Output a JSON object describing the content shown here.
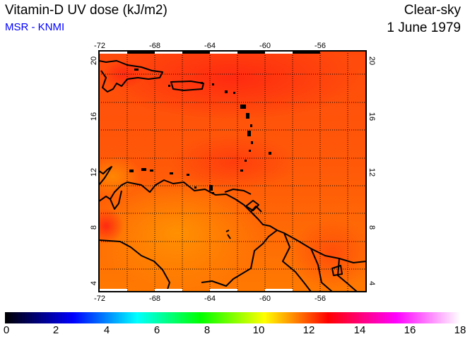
{
  "header": {
    "title": "Vitamin-D UV dose (kJ/m2)",
    "source": "MSR - KNMI",
    "condition": "Clear-sky",
    "date": "1 June 1979"
  },
  "map": {
    "lon_ticks": [
      "-72",
      "-68",
      "-64",
      "-60",
      "-56"
    ],
    "lat_ticks": [
      "20",
      "16",
      "12",
      "8",
      "4"
    ],
    "lon_range": [
      -72.1,
      -52.7
    ],
    "lat_range": [
      3.4,
      20.7
    ],
    "field_range_kJ_m2": [
      11.5,
      13.5
    ]
  },
  "colorbar": {
    "labels": [
      "0",
      "2",
      "4",
      "6",
      "8",
      "10",
      "12",
      "14",
      "16",
      "18"
    ],
    "min": 0,
    "max": 18,
    "colors": [
      "#000000",
      "#0000ff",
      "#00ffff",
      "#00ff00",
      "#ffff00",
      "#ff0000",
      "#ff00ff",
      "#ffffff"
    ]
  }
}
